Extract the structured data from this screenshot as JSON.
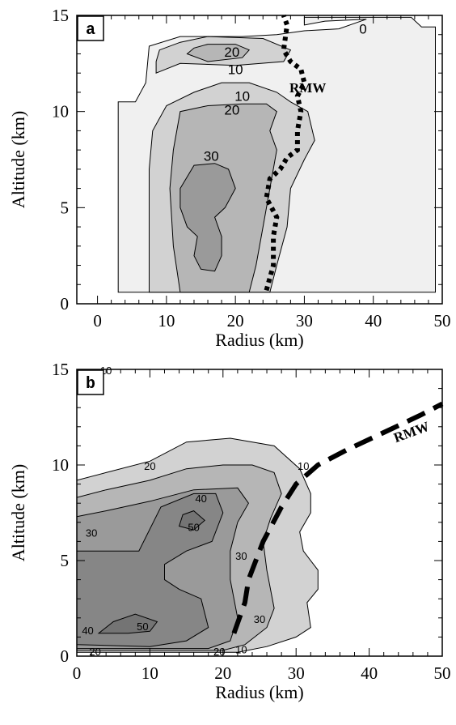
{
  "colors": {
    "shade_0": "#f0f0f0",
    "shade_10": "#d2d2d2",
    "shade_20": "#b6b6b6",
    "shade_30": "#9a9a9a",
    "shade_40": "#868686",
    "shade_50": "#747474",
    "line": "#000000"
  },
  "chart_data": [
    {
      "type": "heatmap",
      "panel_label": "a",
      "xlabel": "Radius (km)",
      "ylabel": "Altitude (km)",
      "xlim": [
        -3,
        50
      ],
      "ylim": [
        0,
        15
      ],
      "x_ticks": [
        0,
        10,
        20,
        30,
        40,
        50
      ],
      "y_ticks": [
        0,
        5,
        10,
        15
      ],
      "grid": false,
      "contour_levels": [
        0,
        10,
        20,
        30
      ],
      "contours": [
        {
          "level": 0,
          "polygon": [
            [
              3,
              0.6
            ],
            [
              49,
              0.6
            ],
            [
              49,
              14.4
            ],
            [
              47,
              14.4
            ],
            [
              45.5,
              14.9
            ],
            [
              30,
              14.9
            ],
            [
              30,
              14.5
            ],
            [
              33,
              14.7
            ],
            [
              39,
              14.8
            ],
            [
              35,
              14.3
            ],
            [
              30,
              14.2
            ],
            [
              26,
              14
            ],
            [
              21,
              13.9
            ],
            [
              12,
              13.9
            ],
            [
              7.5,
              13.4
            ],
            [
              7,
              11.5
            ],
            [
              5.5,
              10.5
            ],
            [
              3,
              10.5
            ]
          ]
        },
        {
          "level": 10,
          "polygon": [
            [
              7.5,
              0.6
            ],
            [
              25,
              0.6
            ],
            [
              26,
              2
            ],
            [
              27.5,
              4
            ],
            [
              28,
              6
            ],
            [
              30,
              7.5
            ],
            [
              31.5,
              8.5
            ],
            [
              30.5,
              10
            ],
            [
              28,
              10.5
            ],
            [
              26,
              11
            ],
            [
              22,
              11.5
            ],
            [
              18,
              11.5
            ],
            [
              14,
              11
            ],
            [
              10,
              10.3
            ],
            [
              8,
              9
            ],
            [
              7.5,
              7
            ]
          ]
        },
        {
          "level": 10,
          "polygon": [
            [
              8.5,
              12
            ],
            [
              12,
              12.5
            ],
            [
              20,
              12.4
            ],
            [
              27,
              12.6
            ],
            [
              28,
              13.2
            ],
            [
              24,
              13.8
            ],
            [
              16,
              13.9
            ],
            [
              12,
              13.6
            ],
            [
              9,
              13.2
            ],
            [
              8.5,
              12.6
            ]
          ]
        },
        {
          "level": 20,
          "polygon": [
            [
              12,
              0.6
            ],
            [
              22,
              0.6
            ],
            [
              23,
              2
            ],
            [
              24,
              4
            ],
            [
              25,
              6
            ],
            [
              26,
              8
            ],
            [
              25,
              9
            ],
            [
              26,
              10
            ],
            [
              24.5,
              10.4
            ],
            [
              21,
              10.4
            ],
            [
              16,
              10.3
            ],
            [
              12,
              10
            ],
            [
              11,
              8
            ],
            [
              10.5,
              6
            ],
            [
              11,
              3
            ]
          ]
        },
        {
          "level": 20,
          "polygon": [
            [
              13,
              13
            ],
            [
              16,
              12.6
            ],
            [
              21,
              12.8
            ],
            [
              22,
              13.2
            ],
            [
              20,
              13.5
            ],
            [
              16,
              13.5
            ],
            [
              14,
              13.3
            ]
          ]
        },
        {
          "level": 30,
          "polygon": [
            [
              15,
              1.8
            ],
            [
              17,
              1.7
            ],
            [
              18,
              2.5
            ],
            [
              18,
              3.5
            ],
            [
              17,
              4.5
            ],
            [
              18.5,
              5
            ],
            [
              20,
              6
            ],
            [
              19,
              7
            ],
            [
              17,
              7.3
            ],
            [
              14,
              7.2
            ],
            [
              12,
              6
            ],
            [
              12,
              5
            ],
            [
              13,
              4
            ],
            [
              14.5,
              3.5
            ],
            [
              14,
              2.5
            ]
          ]
        }
      ],
      "labels": [
        {
          "text": "0",
          "x": 38.5,
          "y": 14.3
        },
        {
          "text": "20",
          "x": 19.5,
          "y": 13.1
        },
        {
          "text": "10",
          "x": 20,
          "y": 12.2
        },
        {
          "text": "10",
          "x": 21,
          "y": 10.8
        },
        {
          "text": "20",
          "x": 19.5,
          "y": 10.1
        },
        {
          "text": "30",
          "x": 16.5,
          "y": 7.7
        }
      ],
      "rmw": {
        "label": "RMW",
        "label_pos": {
          "x": 30.5,
          "y": 11
        },
        "points": [
          [
            24.5,
            0.7
          ],
          [
            25.5,
            2
          ],
          [
            25.5,
            3.5
          ],
          [
            26,
            4.5
          ],
          [
            24.5,
            5.5
          ],
          [
            25,
            6.5
          ],
          [
            26.5,
            7
          ],
          [
            27.5,
            7.6
          ],
          [
            29,
            8
          ],
          [
            29,
            9
          ],
          [
            29.5,
            10
          ],
          [
            29,
            10.8
          ],
          [
            30,
            11.5
          ],
          [
            29.5,
            12.2
          ],
          [
            28,
            12.6
          ],
          [
            27,
            13.2
          ],
          [
            27.5,
            14.5
          ],
          [
            27,
            15
          ]
        ]
      }
    },
    {
      "type": "heatmap",
      "panel_label": "b",
      "xlabel": "Radius (km)",
      "ylabel": "Altitude (km)",
      "xlim": [
        0,
        50
      ],
      "ylim": [
        0,
        15
      ],
      "x_ticks": [
        0,
        10,
        20,
        30,
        40,
        50
      ],
      "y_ticks": [
        0,
        5,
        10,
        15
      ],
      "grid": false,
      "contour_levels": [
        10,
        20,
        30,
        40,
        50
      ],
      "contours": [
        {
          "level": 10,
          "polygon": [
            [
              0,
              0.2
            ],
            [
              22,
              0.2
            ],
            [
              26,
              0.5
            ],
            [
              30,
              1
            ],
            [
              32,
              1.5
            ],
            [
              31.5,
              2.8
            ],
            [
              33,
              3.5
            ],
            [
              33,
              4.5
            ],
            [
              31,
              5.5
            ],
            [
              30.5,
              6.5
            ],
            [
              32,
              7.5
            ],
            [
              32,
              8.5
            ],
            [
              30.5,
              9.8
            ],
            [
              27,
              11
            ],
            [
              21,
              11.4
            ],
            [
              15,
              11.2
            ],
            [
              10,
              10.2
            ],
            [
              4,
              9.6
            ],
            [
              0,
              9.2
            ]
          ]
        },
        {
          "level": 20,
          "polygon": [
            [
              0,
              0.3
            ],
            [
              20,
              0.3
            ],
            [
              23,
              0.6
            ],
            [
              26,
              1.5
            ],
            [
              27,
              2.5
            ],
            [
              26,
              4.5
            ],
            [
              25.5,
              6
            ],
            [
              26.5,
              7.2
            ],
            [
              28,
              8.5
            ],
            [
              27,
              9.6
            ],
            [
              24,
              10
            ],
            [
              20,
              10
            ],
            [
              15,
              9.8
            ],
            [
              10,
              9.2
            ],
            [
              4,
              8.7
            ],
            [
              0,
              8.3
            ]
          ]
        },
        {
          "level": 30,
          "polygon": [
            [
              0,
              0.4
            ],
            [
              18,
              0.4
            ],
            [
              21,
              0.8
            ],
            [
              22,
              2
            ],
            [
              21,
              4
            ],
            [
              21,
              5.5
            ],
            [
              22,
              7
            ],
            [
              23.5,
              8
            ],
            [
              22,
              8.8
            ],
            [
              16,
              8.7
            ],
            [
              10,
              8.1
            ],
            [
              4,
              7.6
            ],
            [
              0,
              7.3
            ]
          ]
        },
        {
          "level": 40,
          "polygon": [
            [
              0,
              0.6
            ],
            [
              10,
              0.5
            ],
            [
              15,
              0.8
            ],
            [
              18,
              1.5
            ],
            [
              17,
              3
            ],
            [
              14,
              3.5
            ],
            [
              12,
              4
            ],
            [
              12,
              4.8
            ],
            [
              15,
              5.5
            ],
            [
              18.5,
              6
            ],
            [
              20,
              7.5
            ],
            [
              19,
              8.5
            ],
            [
              16,
              8.5
            ],
            [
              11.5,
              7.8
            ],
            [
              8.5,
              5.5
            ],
            [
              0,
              5.5
            ]
          ]
        },
        {
          "level": 50,
          "polygon": [
            [
              3,
              1.2
            ],
            [
              7,
              1.2
            ],
            [
              10,
              1.3
            ],
            [
              11,
              1.8
            ],
            [
              8,
              2.2
            ],
            [
              5,
              1.8
            ]
          ]
        },
        {
          "level": 50,
          "polygon": [
            [
              14,
              6.8
            ],
            [
              16,
              6.6
            ],
            [
              17.5,
              7.1
            ],
            [
              16,
              7.6
            ],
            [
              14.5,
              7.4
            ]
          ]
        }
      ],
      "labels": [
        {
          "text": "10",
          "x": 4,
          "y": 15
        },
        {
          "text": "20",
          "x": 10,
          "y": 10
        },
        {
          "text": "10",
          "x": 31,
          "y": 10
        },
        {
          "text": "40",
          "x": 17,
          "y": 8.3
        },
        {
          "text": "30",
          "x": 2,
          "y": 6.5
        },
        {
          "text": "50",
          "x": 16,
          "y": 6.8
        },
        {
          "text": "30",
          "x": 22.5,
          "y": 5.3
        },
        {
          "text": "30",
          "x": 25,
          "y": 2
        },
        {
          "text": "40",
          "x": 1.5,
          "y": 1.4
        },
        {
          "text": "50",
          "x": 9,
          "y": 1.6
        },
        {
          "text": "20",
          "x": 2.5,
          "y": 0.3
        },
        {
          "text": "20",
          "x": 19.5,
          "y": 0.3
        },
        {
          "text": "10",
          "x": 22.5,
          "y": 0.4
        }
      ],
      "rmw": {
        "label": "RMW",
        "label_pos": {
          "x": 46,
          "y": 11.5
        },
        "points": [
          [
            21.5,
            1.2
          ],
          [
            23,
            2.8
          ],
          [
            23.5,
            4
          ],
          [
            25.5,
            6
          ],
          [
            28,
            7.8
          ],
          [
            30,
            9
          ],
          [
            33,
            10
          ],
          [
            37,
            10.8
          ],
          [
            42,
            11.7
          ],
          [
            47,
            12.6
          ],
          [
            50,
            13.2
          ]
        ]
      }
    }
  ]
}
